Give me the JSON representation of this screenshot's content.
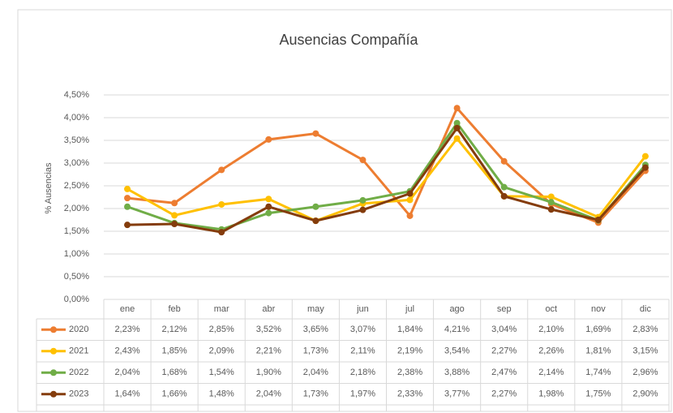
{
  "chart_data": {
    "type": "line",
    "title": "Ausencias Compañía",
    "y_label": "% Ausencias",
    "categories": [
      "ene",
      "feb",
      "mar",
      "abr",
      "may",
      "jun",
      "jul",
      "ago",
      "sep",
      "oct",
      "nov",
      "dic"
    ],
    "series": [
      {
        "name": "2020",
        "color": "#ed7d31",
        "values": [
          2.23,
          2.12,
          2.85,
          3.52,
          3.65,
          3.07,
          1.84,
          4.21,
          3.04,
          2.1,
          1.69,
          2.83
        ],
        "value_labels": [
          "2,23%",
          "2,12%",
          "2,85%",
          "3,52%",
          "3,65%",
          "3,07%",
          "1,84%",
          "4,21%",
          "3,04%",
          "2,10%",
          "1,69%",
          "2,83%"
        ]
      },
      {
        "name": "2021",
        "color": "#ffc000",
        "values": [
          2.43,
          1.85,
          2.09,
          2.21,
          1.73,
          2.11,
          2.19,
          3.54,
          2.27,
          2.26,
          1.81,
          3.15
        ],
        "value_labels": [
          "2,43%",
          "1,85%",
          "2,09%",
          "2,21%",
          "1,73%",
          "2,11%",
          "2,19%",
          "3,54%",
          "2,27%",
          "2,26%",
          "1,81%",
          "3,15%"
        ]
      },
      {
        "name": "2022",
        "color": "#70ad47",
        "values": [
          2.04,
          1.68,
          1.54,
          1.9,
          2.04,
          2.18,
          2.38,
          3.88,
          2.47,
          2.14,
          1.74,
          2.96
        ],
        "value_labels": [
          "2,04%",
          "1,68%",
          "1,54%",
          "1,90%",
          "2,04%",
          "2,18%",
          "2,38%",
          "3,88%",
          "2,47%",
          "2,14%",
          "1,74%",
          "2,96%"
        ]
      },
      {
        "name": "2023",
        "color": "#843c0c",
        "values": [
          1.64,
          1.66,
          1.48,
          2.04,
          1.73,
          1.97,
          2.33,
          3.77,
          2.27,
          1.98,
          1.75,
          2.9
        ],
        "value_labels": [
          "1,64%",
          "1,66%",
          "1,48%",
          "2,04%",
          "1,73%",
          "1,97%",
          "2,33%",
          "3,77%",
          "2,27%",
          "1,98%",
          "1,75%",
          "2,90%"
        ]
      }
    ],
    "ylim": [
      0,
      4.5
    ],
    "yticks": [
      {
        "value": 0,
        "label": "0,00%"
      },
      {
        "value": 0.5,
        "label": "0,50%"
      },
      {
        "value": 1,
        "label": "1,00%"
      },
      {
        "value": 1.5,
        "label": "1,50%"
      },
      {
        "value": 2,
        "label": "2,00%"
      },
      {
        "value": 2.5,
        "label": "2,50%"
      },
      {
        "value": 3,
        "label": "3,00%"
      },
      {
        "value": 3.5,
        "label": "3,50%"
      },
      {
        "value": 4,
        "label": "4,00%"
      },
      {
        "value": 4.5,
        "label": "4,50%"
      }
    ],
    "grid": true
  }
}
